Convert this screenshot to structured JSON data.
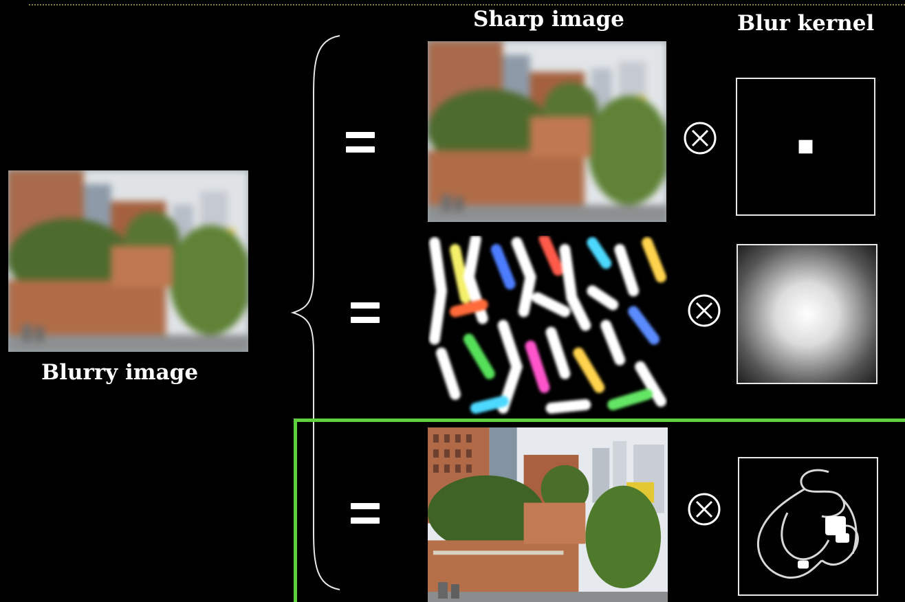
{
  "labels": {
    "sharp_image": "Sharp image",
    "blur_kernel": "Blur kernel",
    "blurry_image": "Blurry image"
  },
  "colors": {
    "background": "#000000",
    "highlight_box": "#5fd13f",
    "dotted_rule": "#8a8455"
  },
  "icons": {
    "equals": "equals-sign-icon",
    "convolution": "circled-times-icon",
    "brace": "left-curly-brace"
  },
  "rows": [
    {
      "sharp_image": "blurred-building-photo",
      "kernel": "delta-kernel",
      "highlighted": false
    },
    {
      "sharp_image": "noisy-color-artifacts",
      "kernel": "gaussian-kernel",
      "highlighted": false
    },
    {
      "sharp_image": "sharp-building-photo",
      "kernel": "motion-trajectory-kernel",
      "highlighted": true
    }
  ]
}
